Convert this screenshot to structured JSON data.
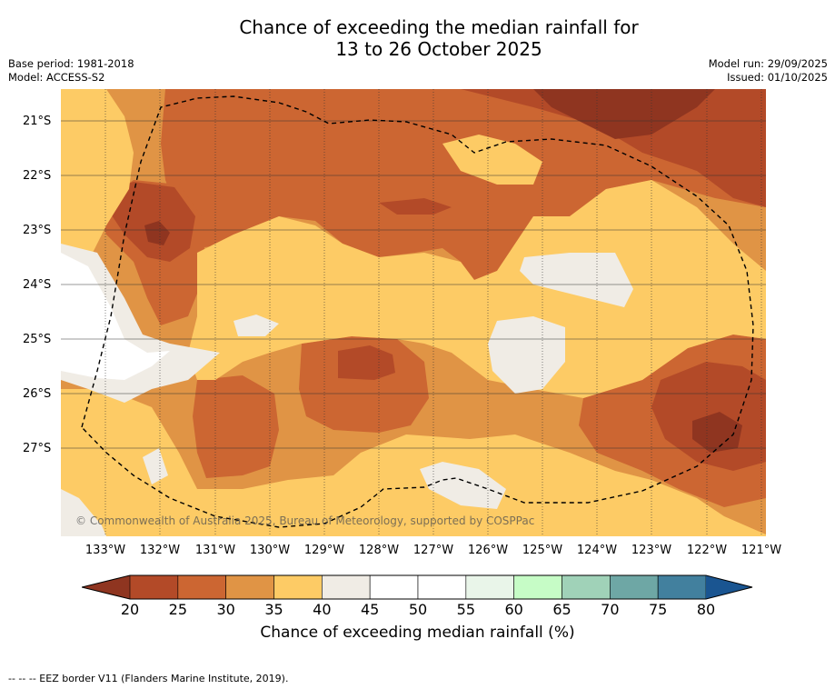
{
  "title": {
    "line1": "Chance of exceeding the median rainfall for",
    "line2": "13 to 26 October 2025"
  },
  "meta": {
    "base_period": "Base period: 1981-2018",
    "model": "Model: ACCESS-S2",
    "model_run": "Model run: 29/09/2025",
    "issued": "Issued: 01/10/2025"
  },
  "map": {
    "copyright": "© Commonwealth of Australia 2025, Bureau of Meteorology, supported by COSPPac",
    "lat_labels": [
      "21°S",
      "22°S",
      "23°S",
      "24°S",
      "25°S",
      "26°S",
      "27°S"
    ],
    "lon_labels": [
      "133°W",
      "132°W",
      "131°W",
      "130°W",
      "129°W",
      "128°W",
      "127°W",
      "126°W",
      "125°W",
      "124°W",
      "123°W",
      "122°W",
      "121°W"
    ],
    "lon_range": [
      -133.8,
      -120.9
    ],
    "lat_range": [
      -20.4,
      -28.6
    ],
    "colors": {
      "c20": "#8f3520",
      "c25": "#b34a28",
      "c30": "#cc6632",
      "c35": "#e09445",
      "c40": "#fdcb65",
      "c45": "#f0ece5",
      "c50": "#ffffff"
    }
  },
  "colorbar": {
    "ticks": [
      "20",
      "25",
      "30",
      "35",
      "40",
      "45",
      "50",
      "55",
      "60",
      "65",
      "70",
      "75",
      "80"
    ],
    "colors": [
      "#b34a28",
      "#cc6632",
      "#e09445",
      "#fdcb65",
      "#f0ece5",
      "#ffffff",
      "#ffffff",
      "#e9f5e9",
      "#c6fcc6",
      "#a0d2b8",
      "#6ea7a5",
      "#42809e"
    ],
    "under_color": "#8f3520",
    "over_color": "#1a5591",
    "label": "Chance of exceeding median rainfall (%)"
  },
  "footer": "--  --  -- EEZ border V11 (Flanders Marine Institute, 2019)."
}
